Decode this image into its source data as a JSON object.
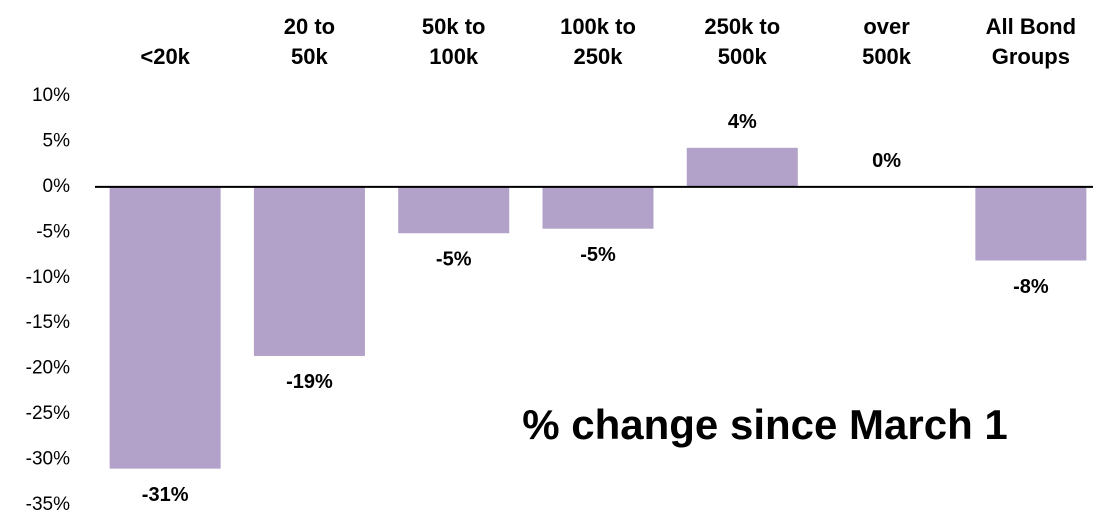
{
  "chart_data": {
    "type": "bar",
    "title": "% change since March 1",
    "categories": [
      "<20k",
      "20 to\n50k",
      "50k to\n100k",
      "100k to\n250k",
      "250k to\n500k",
      "over\n500k",
      "All Bond\nGroups"
    ],
    "values": [
      -31,
      -18.6,
      -5.1,
      -4.6,
      4.3,
      0,
      -8.1
    ],
    "value_labels": [
      "-31%",
      "-19%",
      "-5%",
      "-5%",
      "4%",
      "0%",
      "-8%"
    ],
    "color": "#b2a1c9",
    "ylim": [
      -35,
      10
    ],
    "yticks": [
      {
        "value": 10,
        "label": "10%"
      },
      {
        "value": 5,
        "label": "5%"
      },
      {
        "value": 0,
        "label": "0%"
      },
      {
        "value": -5,
        "label": "-5%"
      },
      {
        "value": -10,
        "label": "-10%"
      },
      {
        "value": -15,
        "label": "-15%"
      },
      {
        "value": -20,
        "label": "-20%"
      },
      {
        "value": -25,
        "label": "-25%"
      },
      {
        "value": -30,
        "label": "-30%"
      },
      {
        "value": -35,
        "label": "-35%"
      }
    ],
    "grid": false
  }
}
